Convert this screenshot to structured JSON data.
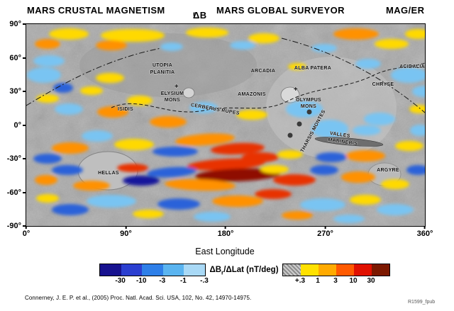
{
  "header": {
    "title_left": "MARS CRUSTAL MAGNETISM",
    "delta_main": "ΔB",
    "delta_sub": "r",
    "title_mission": "MARS GLOBAL SURVEYOR",
    "title_instrument": "MAG/ER"
  },
  "axes": {
    "x_label": "East Longitude",
    "x_ticks": [
      "0°",
      "90°",
      "180°",
      "270°",
      "360°"
    ],
    "y_ticks": [
      "90°",
      "60°",
      "30°",
      "0°",
      "-30°",
      "-60°",
      "-90°"
    ]
  },
  "map_labels": [
    "UTOPIA",
    "PLANITIA",
    "ARCADIA",
    "ALBA PATERA",
    "ACIDALIA",
    "CHRYSE",
    "ELYSIUM",
    "MONS",
    "AMAZONIS",
    "OLYMPUS",
    "MONS",
    "ISIDIS",
    "CERBERUS RUPES",
    "THARSIS MONTES",
    "VALLES",
    "MARINERIS",
    "HELLAS",
    "ARGYRE"
  ],
  "markers": {
    "plus": "+"
  },
  "legend": {
    "title_main": "ΔB",
    "title_sub": "r",
    "title_rest": "/ΔLat (nT/deg)",
    "negative": {
      "colors": [
        "#17128f",
        "#2b3fd0",
        "#2e7fe8",
        "#5ab4f0",
        "#a9d9f6"
      ],
      "labels": [
        "-30",
        "-10",
        "-3",
        "-1",
        "-.3"
      ]
    },
    "positive": {
      "colors": [
        "hatch",
        "#ffe100",
        "#ffaa00",
        "#ff5a00",
        "#e01000",
        "#7c1800"
      ],
      "labels": [
        "+.3",
        "1",
        "3",
        "10",
        "30"
      ]
    }
  },
  "chart_data": {
    "type": "heatmap",
    "title": "MARS CRUSTAL MAGNETISM ΔBr — MARS GLOBAL SURVEYOR MAG/ER",
    "xlabel": "East Longitude",
    "x_range": [
      0,
      360
    ],
    "y_range": [
      -90,
      90
    ],
    "colorbar_label": "ΔBr/ΔLat (nT/deg)",
    "colorbar_levels": [
      -30,
      -10,
      -3,
      -1,
      -0.3,
      0.3,
      1,
      3,
      10,
      30
    ],
    "legend_position": "bottom",
    "grid": false
  },
  "footer": {
    "citation": "Connerney, J. E. P. et al., (2005) Proc. Natl. Acad. Sci. USA, 102, No. 42, 14970-14975.",
    "figure_id": "R1599_fpub"
  }
}
